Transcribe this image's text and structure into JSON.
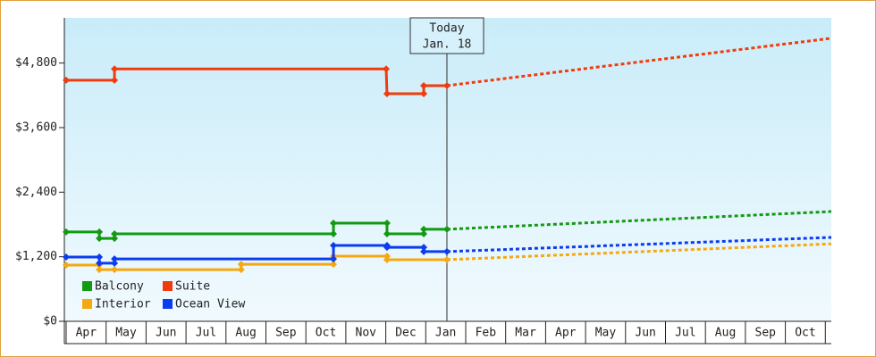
{
  "chart_data": {
    "type": "line",
    "categories": [
      "Apr",
      "May",
      "Jun",
      "Jul",
      "Aug",
      "Sep",
      "Oct",
      "Nov",
      "Dec",
      "Jan",
      "Feb",
      "Mar",
      "Apr",
      "May",
      "Jun",
      "Jul",
      "Aug",
      "Sep",
      "Oct"
    ],
    "xlim": [
      0,
      19.15
    ],
    "ylim": [
      0,
      5640
    ],
    "yticks": [
      {
        "value": 0,
        "label": "$0"
      },
      {
        "value": 1200,
        "label": "$1,200"
      },
      {
        "value": 2400,
        "label": "$2,400"
      },
      {
        "value": 3600,
        "label": "$3,600"
      },
      {
        "value": 4800,
        "label": "$4,800"
      }
    ],
    "today": {
      "label": [
        "Today",
        "Jan. 18"
      ],
      "x": 9.53
    },
    "legend": "lower left",
    "series": [
      {
        "name": "Balcony",
        "color": "#129a12",
        "x": [
          0,
          0.83,
          0.83,
          1.21,
          1.21,
          6.69,
          6.69,
          8.03,
          8.03,
          8.95,
          8.95,
          9.53
        ],
        "values": [
          1660,
          1660,
          1540,
          1540,
          1625,
          1625,
          1825,
          1825,
          1625,
          1625,
          1710,
          1710
        ],
        "projection": {
          "x": [
            9.53,
            19.15
          ],
          "values": [
            1710,
            2040
          ]
        }
      },
      {
        "name": "Suite",
        "color": "#f03c0c",
        "x": [
          0,
          1.21,
          1.21,
          8.01,
          8.03,
          8.95,
          8.95,
          9.53
        ],
        "values": [
          4480,
          4480,
          4690,
          4690,
          4230,
          4230,
          4380,
          4380
        ],
        "projection": {
          "x": [
            9.53,
            19.15
          ],
          "values": [
            4380,
            5260
          ]
        }
      },
      {
        "name": "Interior",
        "color": "#f5a80f",
        "x": [
          0,
          0.83,
          0.83,
          1.21,
          4.38,
          4.38,
          6.69,
          6.69,
          8.03,
          8.03,
          9.53
        ],
        "values": [
          1045,
          1045,
          960,
          960,
          960,
          1060,
          1060,
          1210,
          1210,
          1145,
          1145
        ],
        "projection": {
          "x": [
            9.53,
            19.15
          ],
          "values": [
            1145,
            1440
          ]
        }
      },
      {
        "name": "Ocean View",
        "color": "#0c3cf0",
        "x": [
          0,
          0.83,
          0.83,
          1.21,
          1.21,
          6.69,
          6.69,
          8.03,
          8.03,
          8.95,
          8.95,
          9.53
        ],
        "values": [
          1195,
          1195,
          1080,
          1080,
          1160,
          1160,
          1410,
          1410,
          1375,
          1375,
          1295,
          1295
        ],
        "projection": {
          "x": [
            9.53,
            19.15
          ],
          "values": [
            1295,
            1560
          ]
        }
      }
    ]
  }
}
